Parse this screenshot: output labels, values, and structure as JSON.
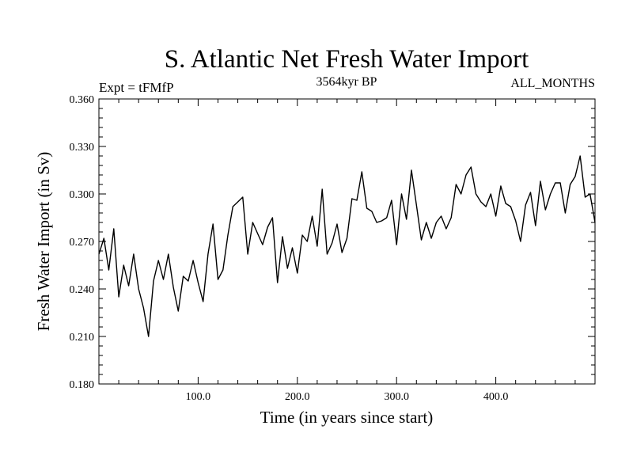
{
  "chart_data": {
    "type": "line",
    "title": "S. Atlantic Net Fresh Water Import",
    "subtitle": "3564kyr BP",
    "left_note": "Expt = tFMfP",
    "right_note": "ALL_MONTHS",
    "xlabel": "Time (in years since start)",
    "ylabel": "Fresh Water Import (in Sv)",
    "xlim": [
      0,
      500
    ],
    "ylim": [
      0.18,
      0.36
    ],
    "xticks": [
      100,
      200,
      300,
      400
    ],
    "xtick_labels": [
      "100.0",
      "200.0",
      "300.0",
      "400.0"
    ],
    "yticks": [
      0.18,
      0.21,
      0.24,
      0.27,
      0.3,
      0.33,
      0.36
    ],
    "ytick_labels": [
      "0.180",
      "0.210",
      "0.240",
      "0.270",
      "0.300",
      "0.330",
      "0.360"
    ],
    "grid": false,
    "series": [
      {
        "name": "S. Atlantic net fresh water import",
        "x_start": 0,
        "x_step": 5,
        "values": [
          0.262,
          0.272,
          0.252,
          0.278,
          0.235,
          0.255,
          0.242,
          0.262,
          0.24,
          0.228,
          0.21,
          0.245,
          0.258,
          0.246,
          0.262,
          0.241,
          0.226,
          0.248,
          0.245,
          0.258,
          0.244,
          0.232,
          0.262,
          0.281,
          0.246,
          0.252,
          0.274,
          0.292,
          0.295,
          0.298,
          0.262,
          0.282,
          0.275,
          0.268,
          0.279,
          0.285,
          0.244,
          0.273,
          0.253,
          0.266,
          0.25,
          0.274,
          0.27,
          0.286,
          0.267,
          0.303,
          0.262,
          0.269,
          0.281,
          0.263,
          0.272,
          0.297,
          0.296,
          0.314,
          0.291,
          0.289,
          0.282,
          0.283,
          0.285,
          0.296,
          0.268,
          0.3,
          0.284,
          0.315,
          0.293,
          0.271,
          0.282,
          0.272,
          0.282,
          0.286,
          0.278,
          0.285,
          0.306,
          0.3,
          0.312,
          0.317,
          0.3,
          0.295,
          0.292,
          0.3,
          0.286,
          0.305,
          0.294,
          0.292,
          0.283,
          0.27,
          0.293,
          0.301,
          0.28,
          0.308,
          0.29,
          0.3,
          0.307,
          0.307,
          0.288,
          0.306,
          0.311,
          0.324,
          0.298,
          0.3,
          0.282
        ]
      }
    ]
  }
}
